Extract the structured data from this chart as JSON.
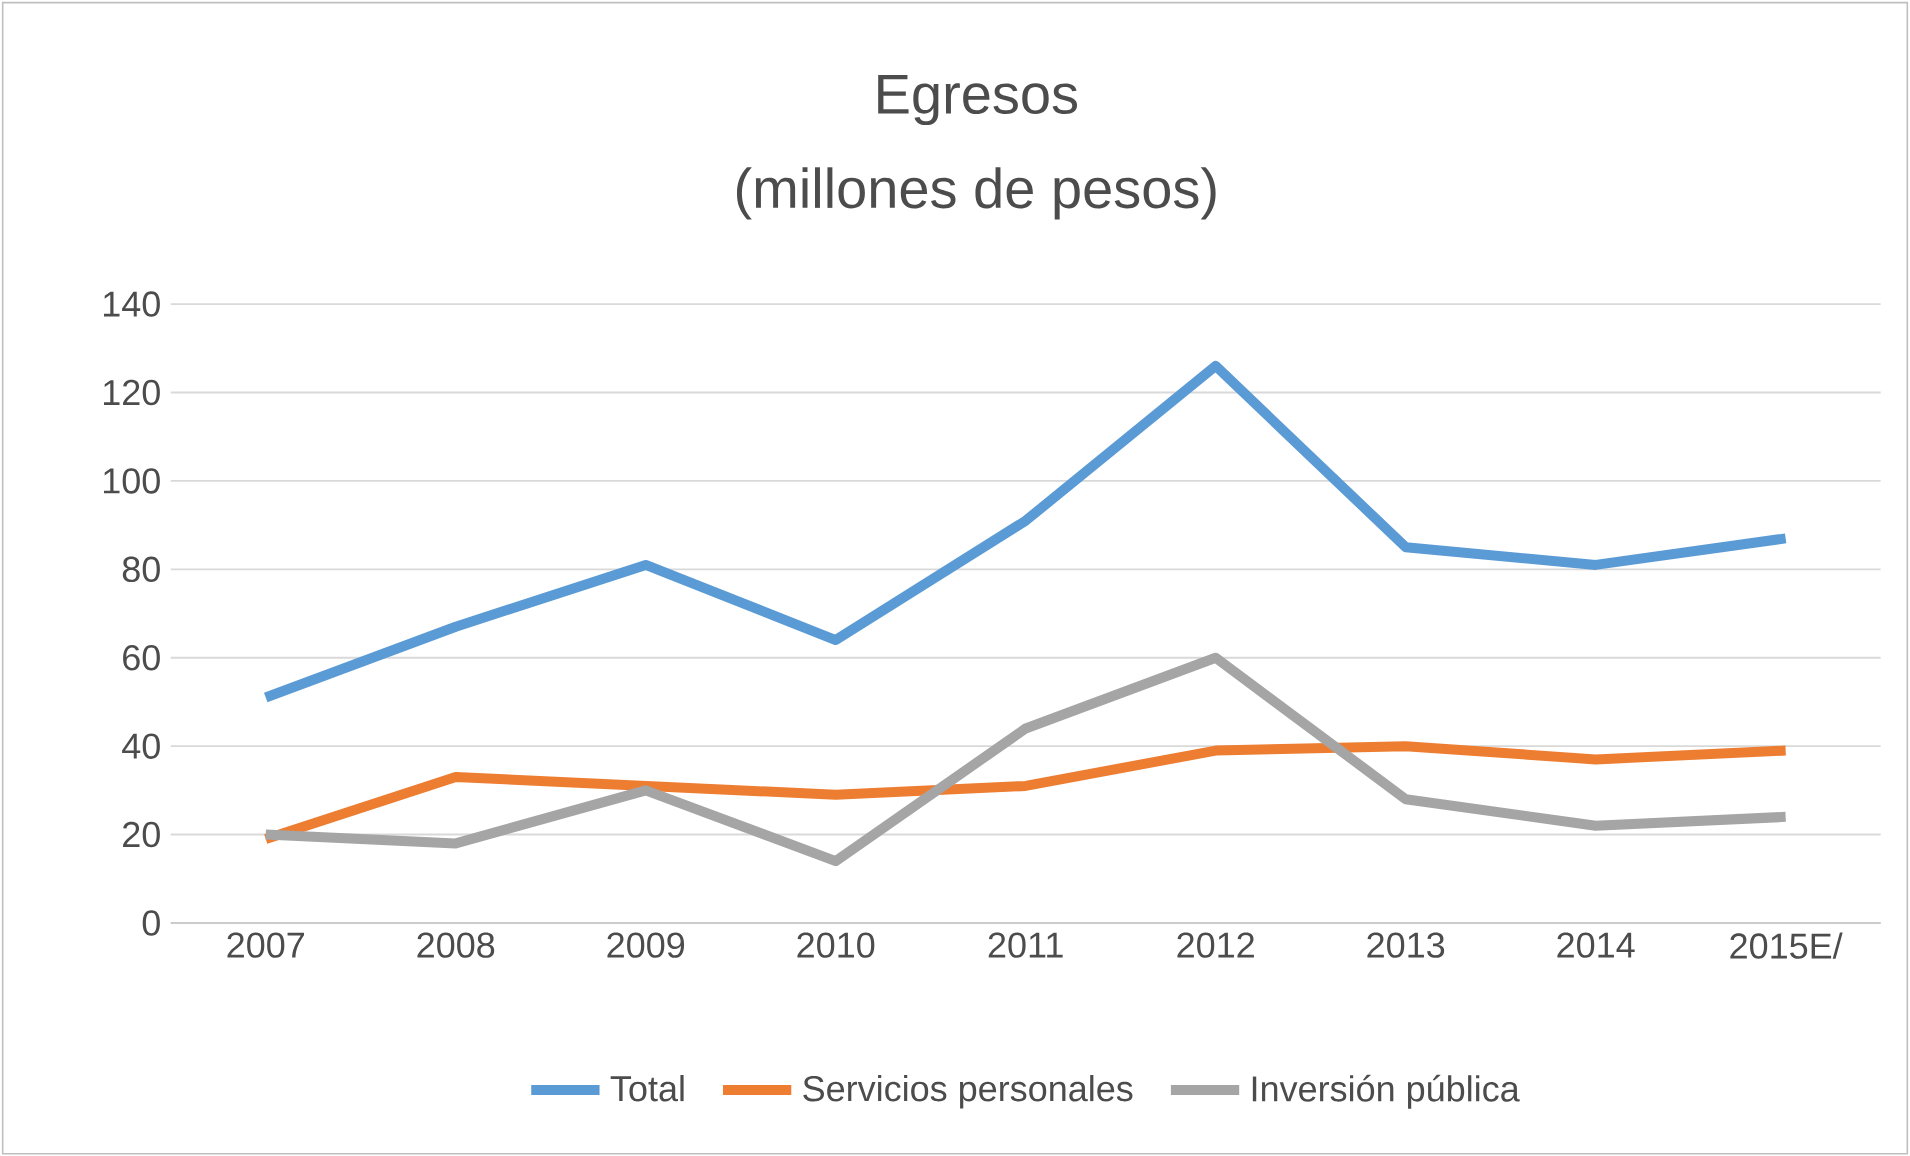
{
  "chart_data": {
    "type": "line",
    "title": "Egresos",
    "subtitle": "(millones de pesos)",
    "categories": [
      "2007",
      "2008",
      "2009",
      "2010",
      "2011",
      "2012",
      "2013",
      "2014",
      "2015E/"
    ],
    "series": [
      {
        "name": "Total",
        "color": "#5b9bd5",
        "values": [
          51,
          67,
          81,
          64,
          91,
          126,
          85,
          81,
          87
        ]
      },
      {
        "name": "Servicios personales",
        "color": "#ed7d31",
        "values": [
          19,
          33,
          31,
          29,
          31,
          39,
          40,
          37,
          39
        ]
      },
      {
        "name": "Inversión pública",
        "color": "#a5a5a5",
        "values": [
          20,
          18,
          30,
          14,
          44,
          60,
          28,
          22,
          24
        ]
      }
    ],
    "ylim": [
      0,
      140
    ],
    "yticks": [
      0,
      20,
      40,
      60,
      80,
      100,
      120,
      140
    ],
    "grid": "y",
    "legend": "bottom",
    "line_style": "solid"
  }
}
